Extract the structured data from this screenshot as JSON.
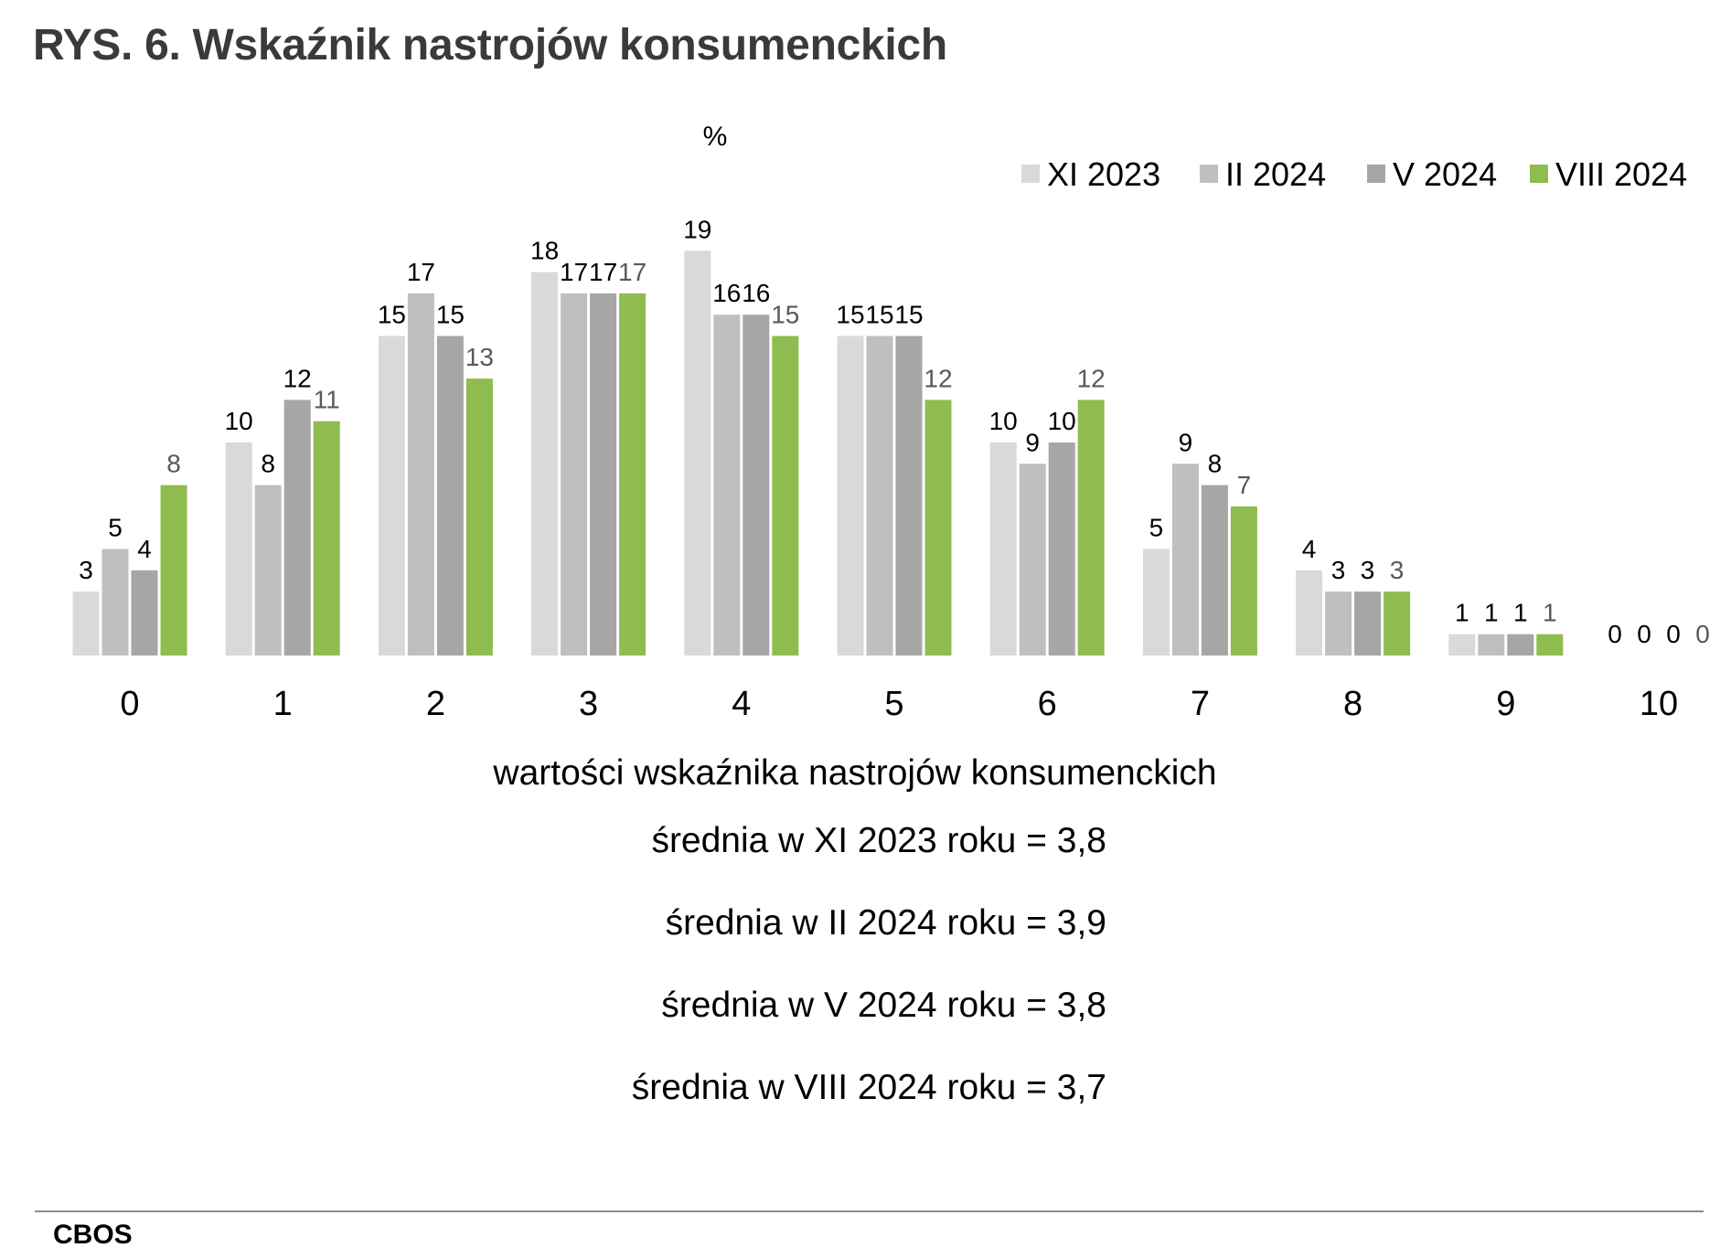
{
  "title": "RYS. 6. Wskaźnik nastrojów konsumenckich",
  "chart_data": {
    "type": "bar",
    "unit_label": "%",
    "xlabel": "wartości wskaźnika nastrojów konsumenckich",
    "categories": [
      "0",
      "1",
      "2",
      "3",
      "4",
      "5",
      "6",
      "7",
      "8",
      "9",
      "10"
    ],
    "ylim": [
      0,
      19
    ],
    "grid": false,
    "legend_position": "top-right",
    "series": [
      {
        "name": "XI 2023",
        "color": "#d9d9d9",
        "label_color": "#000000",
        "values": [
          3,
          10,
          15,
          18,
          19,
          15,
          10,
          5,
          4,
          1,
          0
        ]
      },
      {
        "name": "II 2024",
        "color": "#bfbfbf",
        "label_color": "#000000",
        "values": [
          5,
          8,
          17,
          17,
          16,
          15,
          9,
          9,
          3,
          1,
          0
        ]
      },
      {
        "name": "V 2024",
        "color": "#a6a6a6",
        "label_color": "#000000",
        "values": [
          4,
          12,
          15,
          17,
          16,
          15,
          10,
          8,
          3,
          1,
          0
        ]
      },
      {
        "name": "VIII 2024",
        "color": "#8fbc4f",
        "label_color": "#595959",
        "values": [
          8,
          11,
          13,
          17,
          15,
          12,
          12,
          7,
          3,
          1,
          0
        ]
      }
    ]
  },
  "means": [
    "średnia w XI 2023 roku = 3,8",
    "średnia w II 2024 roku = 3,9",
    "średnia w V 2024 roku = 3,8",
    "średnia w VIII 2024 roku = 3,7"
  ],
  "source": "CBOS"
}
